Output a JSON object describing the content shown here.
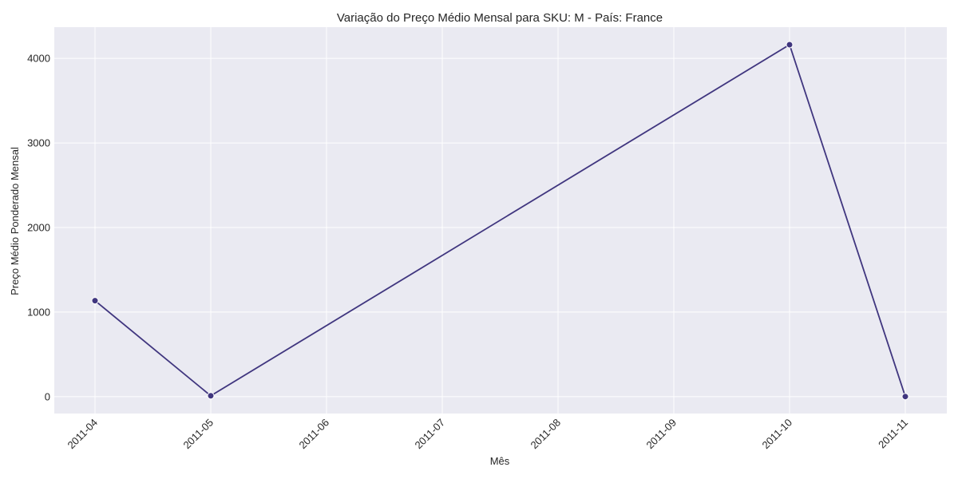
{
  "chart_data": {
    "type": "line",
    "title": "Variação do Preço Médio Mensal para SKU: M - País: France",
    "xlabel": "Mês",
    "ylabel": "Preço Médio Ponderado Mensal",
    "x_ticks": [
      "2011-04",
      "2011-05",
      "2011-06",
      "2011-07",
      "2011-08",
      "2011-09",
      "2011-10",
      "2011-11"
    ],
    "y_ticks": [
      0,
      1000,
      2000,
      3000,
      4000
    ],
    "ylim": [
      -200,
      4370
    ],
    "grid": true,
    "series": [
      {
        "x": [
          "2011-04",
          "2011-05",
          "2011-10",
          "2011-11"
        ],
        "values": [
          1135,
          10,
          4162,
          1
        ],
        "color": "#40367f"
      }
    ],
    "plot_background": "#eaeaf2"
  }
}
